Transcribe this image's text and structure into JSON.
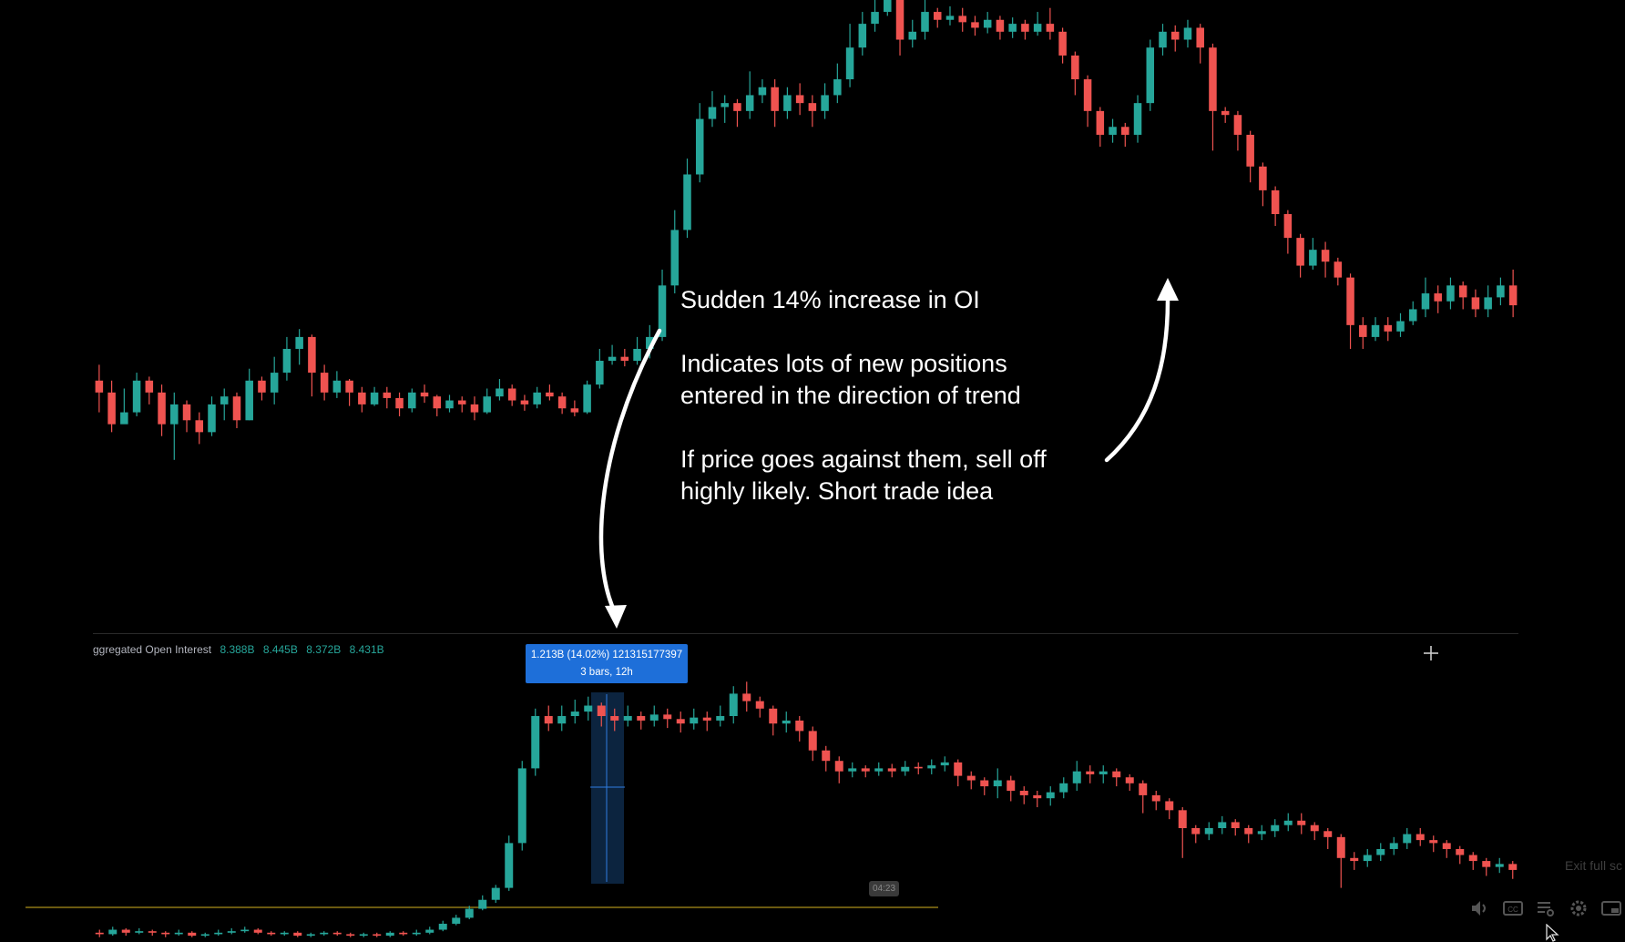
{
  "annotation": {
    "line1": "Sudden 14% increase in OI",
    "line2": "Indicates lots of new positions\nentered in the direction of trend",
    "line3": "If price goes against them, sell off\nhighly likely. Short trade idea"
  },
  "indicator": {
    "name": "ggregated Open Interest",
    "values": [
      "8.388B",
      "8.445B",
      "8.372B",
      "8.431B"
    ]
  },
  "measure_tooltip": {
    "line1": "1.213B (14.02%) 121315177397",
    "line2": "3 bars, 12h"
  },
  "video": {
    "timestamp": "04:23",
    "exit_label": "Exit full sc"
  },
  "colors": {
    "up": "#26a69a",
    "down": "#ef5350",
    "background": "#000000",
    "tooltip": "#1e6fd9",
    "annotation_text": "#ffffff",
    "baseline": "#6b5a10"
  },
  "icons": [
    "crosshair-icon",
    "volume-icon",
    "captions-icon",
    "playlist-icon",
    "settings-icon",
    "miniplayer-icon",
    "cursor-icon",
    "arrow-down-icon",
    "arrow-up-icon"
  ],
  "chart_data": [
    {
      "type": "candlestick",
      "pane": "price",
      "x": "bar index",
      "ohlc": [
        [
          520,
          505,
          540,
          480
        ],
        [
          505,
          465,
          520,
          455
        ],
        [
          465,
          480,
          510,
          470
        ],
        [
          480,
          520,
          530,
          475
        ],
        [
          520,
          505,
          525,
          490
        ],
        [
          505,
          465,
          515,
          450
        ],
        [
          465,
          490,
          505,
          420
        ],
        [
          490,
          470,
          495,
          455
        ],
        [
          470,
          455,
          480,
          440
        ],
        [
          455,
          490,
          500,
          450
        ],
        [
          490,
          500,
          510,
          470
        ],
        [
          500,
          470,
          505,
          460
        ],
        [
          470,
          520,
          535,
          470
        ],
        [
          520,
          505,
          525,
          495
        ],
        [
          505,
          530,
          550,
          490
        ],
        [
          530,
          560,
          575,
          520
        ],
        [
          560,
          575,
          585,
          540
        ],
        [
          575,
          530,
          578,
          500
        ],
        [
          530,
          505,
          540,
          495
        ],
        [
          505,
          520,
          532,
          498
        ],
        [
          520,
          505,
          522,
          488
        ],
        [
          505,
          490,
          512,
          480
        ],
        [
          490,
          505,
          512,
          488
        ],
        [
          505,
          498,
          512,
          485
        ],
        [
          498,
          485,
          505,
          475
        ],
        [
          485,
          505,
          510,
          480
        ],
        [
          505,
          500,
          515,
          492
        ],
        [
          500,
          485,
          502,
          475
        ],
        [
          485,
          495,
          502,
          480
        ],
        [
          495,
          490,
          500,
          480
        ],
        [
          490,
          480,
          500,
          470
        ],
        [
          480,
          500,
          510,
          478
        ],
        [
          500,
          510,
          522,
          495
        ],
        [
          510,
          495,
          515,
          488
        ],
        [
          495,
          490,
          502,
          482
        ],
        [
          490,
          505,
          512,
          485
        ],
        [
          505,
          500,
          515,
          495
        ],
        [
          500,
          485,
          505,
          478
        ],
        [
          485,
          480,
          495,
          475
        ],
        [
          480,
          515,
          520,
          478
        ],
        [
          515,
          545,
          560,
          510
        ],
        [
          545,
          550,
          565,
          540
        ],
        [
          550,
          545,
          560,
          538
        ],
        [
          545,
          560,
          575,
          540
        ],
        [
          560,
          575,
          590,
          548
        ],
        [
          575,
          640,
          660,
          570
        ],
        [
          640,
          710,
          735,
          630
        ],
        [
          710,
          780,
          800,
          700
        ],
        [
          780,
          850,
          870,
          770
        ],
        [
          850,
          865,
          885,
          840
        ],
        [
          865,
          870,
          880,
          845
        ],
        [
          870,
          860,
          875,
          840
        ],
        [
          860,
          880,
          910,
          850
        ],
        [
          880,
          890,
          900,
          870
        ],
        [
          890,
          860,
          900,
          840
        ],
        [
          860,
          880,
          890,
          850
        ],
        [
          880,
          870,
          895,
          855
        ],
        [
          870,
          860,
          880,
          840
        ],
        [
          860,
          880,
          895,
          850
        ],
        [
          880,
          900,
          920,
          870
        ],
        [
          900,
          940,
          970,
          890
        ],
        [
          940,
          970,
          985,
          930
        ],
        [
          970,
          985,
          1000,
          960
        ],
        [
          985,
          1000,
          1010,
          980
        ],
        [
          1000,
          950,
          1012,
          930
        ],
        [
          950,
          960,
          975,
          940
        ],
        [
          960,
          985,
          1000,
          950
        ],
        [
          985,
          975,
          990,
          965
        ],
        [
          975,
          980,
          992,
          968
        ],
        [
          980,
          972,
          990,
          960
        ],
        [
          972,
          965,
          980,
          955
        ],
        [
          965,
          975,
          985,
          958
        ],
        [
          975,
          960,
          980,
          950
        ],
        [
          960,
          970,
          978,
          952
        ],
        [
          970,
          960,
          975,
          950
        ],
        [
          960,
          970,
          985,
          955
        ],
        [
          970,
          960,
          990,
          950
        ],
        [
          960,
          930,
          965,
          920
        ],
        [
          930,
          900,
          935,
          880
        ],
        [
          900,
          860,
          905,
          840
        ],
        [
          860,
          830,
          865,
          815
        ],
        [
          830,
          840,
          850,
          820
        ],
        [
          840,
          830,
          845,
          815
        ],
        [
          830,
          870,
          880,
          820
        ],
        [
          870,
          940,
          950,
          860
        ],
        [
          940,
          960,
          970,
          930
        ],
        [
          960,
          950,
          968,
          935
        ],
        [
          950,
          965,
          975,
          940
        ],
        [
          965,
          940,
          970,
          920
        ],
        [
          940,
          860,
          945,
          810
        ],
        [
          860,
          855,
          865,
          845
        ],
        [
          855,
          830,
          860,
          810
        ],
        [
          830,
          790,
          835,
          770
        ],
        [
          790,
          760,
          795,
          740
        ],
        [
          760,
          730,
          765,
          715
        ],
        [
          730,
          700,
          735,
          680
        ],
        [
          700,
          665,
          705,
          650
        ],
        [
          665,
          685,
          700,
          660
        ],
        [
          685,
          670,
          695,
          650
        ],
        [
          670,
          650,
          675,
          640
        ],
        [
          650,
          590,
          655,
          560
        ],
        [
          590,
          575,
          600,
          560
        ],
        [
          575,
          590,
          600,
          570
        ],
        [
          590,
          582,
          600,
          570
        ],
        [
          582,
          595,
          605,
          575
        ],
        [
          595,
          610,
          620,
          590
        ],
        [
          610,
          630,
          650,
          600
        ],
        [
          630,
          620,
          640,
          605
        ],
        [
          620,
          640,
          650,
          610
        ],
        [
          640,
          625,
          645,
          610
        ],
        [
          625,
          610,
          635,
          600
        ],
        [
          610,
          625,
          640,
          600
        ],
        [
          625,
          640,
          650,
          615
        ],
        [
          640,
          615,
          660,
          600
        ]
      ]
    },
    {
      "type": "candlestick",
      "pane": "open_interest",
      "series": "Aggregated Open Interest",
      "x": "bar index",
      "ohlc": [
        [
          8.1,
          8.09,
          8.12,
          8.07
        ],
        [
          8.09,
          8.12,
          8.14,
          8.08
        ],
        [
          8.12,
          8.1,
          8.13,
          8.08
        ],
        [
          8.1,
          8.11,
          8.13,
          8.09
        ],
        [
          8.11,
          8.1,
          8.12,
          8.08
        ],
        [
          8.1,
          8.09,
          8.11,
          8.07
        ],
        [
          8.09,
          8.1,
          8.12,
          8.08
        ],
        [
          8.1,
          8.08,
          8.11,
          8.07
        ],
        [
          8.08,
          8.09,
          8.1,
          8.07
        ],
        [
          8.09,
          8.1,
          8.12,
          8.08
        ],
        [
          8.1,
          8.11,
          8.13,
          8.09
        ],
        [
          8.11,
          8.12,
          8.14,
          8.1
        ],
        [
          8.12,
          8.1,
          8.13,
          8.09
        ],
        [
          8.1,
          8.09,
          8.11,
          8.08
        ],
        [
          8.09,
          8.1,
          8.11,
          8.08
        ],
        [
          8.1,
          8.08,
          8.11,
          8.07
        ],
        [
          8.08,
          8.09,
          8.1,
          8.07
        ],
        [
          8.09,
          8.1,
          8.11,
          8.08
        ],
        [
          8.1,
          8.09,
          8.11,
          8.08
        ],
        [
          8.09,
          8.08,
          8.1,
          8.07
        ],
        [
          8.08,
          8.09,
          8.1,
          8.07
        ],
        [
          8.09,
          8.08,
          8.1,
          8.07
        ],
        [
          8.08,
          8.1,
          8.11,
          8.07
        ],
        [
          8.1,
          8.09,
          8.11,
          8.08
        ],
        [
          8.09,
          8.1,
          8.12,
          8.08
        ],
        [
          8.1,
          8.12,
          8.14,
          8.09
        ],
        [
          8.12,
          8.16,
          8.18,
          8.11
        ],
        [
          8.16,
          8.2,
          8.22,
          8.15
        ],
        [
          8.2,
          8.26,
          8.28,
          8.19
        ],
        [
          8.26,
          8.32,
          8.35,
          8.25
        ],
        [
          8.32,
          8.4,
          8.42,
          8.3
        ],
        [
          8.4,
          8.7,
          8.75,
          8.38
        ],
        [
          8.7,
          9.2,
          9.25,
          8.65
        ],
        [
          9.2,
          9.55,
          9.6,
          9.15
        ],
        [
          9.55,
          9.5,
          9.62,
          9.45
        ],
        [
          9.5,
          9.55,
          9.62,
          9.45
        ],
        [
          9.55,
          9.58,
          9.66,
          9.5
        ],
        [
          9.58,
          9.62,
          9.68,
          9.52
        ],
        [
          9.62,
          9.55,
          9.64,
          9.48
        ],
        [
          9.55,
          9.52,
          9.6,
          9.45
        ],
        [
          9.52,
          9.55,
          9.62,
          9.48
        ],
        [
          9.55,
          9.52,
          9.58,
          9.46
        ],
        [
          9.52,
          9.56,
          9.62,
          9.48
        ],
        [
          9.56,
          9.53,
          9.6,
          9.47
        ],
        [
          9.53,
          9.5,
          9.58,
          9.44
        ],
        [
          9.5,
          9.54,
          9.6,
          9.46
        ],
        [
          9.54,
          9.52,
          9.58,
          9.45
        ],
        [
          9.52,
          9.55,
          9.62,
          9.48
        ],
        [
          9.55,
          9.7,
          9.75,
          9.5
        ],
        [
          9.7,
          9.65,
          9.78,
          9.58
        ],
        [
          9.65,
          9.6,
          9.68,
          9.54
        ],
        [
          9.6,
          9.5,
          9.62,
          9.42
        ],
        [
          9.5,
          9.52,
          9.58,
          9.44
        ],
        [
          9.52,
          9.45,
          9.55,
          9.38
        ],
        [
          9.45,
          9.32,
          9.48,
          9.25
        ],
        [
          9.32,
          9.25,
          9.35,
          9.18
        ],
        [
          9.25,
          9.18,
          9.28,
          9.1
        ],
        [
          9.18,
          9.2,
          9.24,
          9.14
        ],
        [
          9.2,
          9.18,
          9.22,
          9.14
        ],
        [
          9.18,
          9.2,
          9.24,
          9.15
        ],
        [
          9.2,
          9.18,
          9.23,
          9.14
        ],
        [
          9.18,
          9.21,
          9.25,
          9.15
        ],
        [
          9.21,
          9.2,
          9.24,
          9.16
        ],
        [
          9.2,
          9.22,
          9.26,
          9.16
        ],
        [
          9.22,
          9.24,
          9.28,
          9.18
        ],
        [
          9.24,
          9.15,
          9.26,
          9.08
        ],
        [
          9.15,
          9.12,
          9.18,
          9.06
        ],
        [
          9.12,
          9.08,
          9.14,
          9.02
        ],
        [
          9.08,
          9.12,
          9.2,
          9.0
        ],
        [
          9.12,
          9.05,
          9.15,
          8.98
        ],
        [
          9.05,
          9.02,
          9.08,
          8.96
        ],
        [
          9.02,
          9.0,
          9.05,
          8.94
        ],
        [
          9.0,
          9.04,
          9.08,
          8.95
        ],
        [
          9.04,
          9.1,
          9.14,
          9.0
        ],
        [
          9.1,
          9.18,
          9.25,
          9.05
        ],
        [
          9.18,
          9.16,
          9.22,
          9.1
        ],
        [
          9.16,
          9.18,
          9.22,
          9.1
        ],
        [
          9.18,
          9.14,
          9.2,
          9.08
        ],
        [
          9.14,
          9.1,
          9.16,
          9.05
        ],
        [
          9.1,
          9.02,
          9.12,
          8.9
        ],
        [
          9.02,
          8.98,
          9.05,
          8.92
        ],
        [
          8.98,
          8.92,
          9.0,
          8.86
        ],
        [
          8.92,
          8.8,
          8.94,
          8.6
        ],
        [
          8.8,
          8.76,
          8.82,
          8.7
        ],
        [
          8.76,
          8.8,
          8.84,
          8.72
        ],
        [
          8.8,
          8.84,
          8.88,
          8.76
        ],
        [
          8.84,
          8.8,
          8.86,
          8.75
        ],
        [
          8.8,
          8.76,
          8.82,
          8.7
        ],
        [
          8.76,
          8.78,
          8.82,
          8.72
        ],
        [
          8.78,
          8.82,
          8.86,
          8.74
        ],
        [
          8.82,
          8.85,
          8.9,
          8.78
        ],
        [
          8.85,
          8.82,
          8.9,
          8.76
        ],
        [
          8.82,
          8.78,
          8.84,
          8.72
        ],
        [
          8.78,
          8.74,
          8.8,
          8.66
        ],
        [
          8.74,
          8.6,
          8.76,
          8.4
        ],
        [
          8.6,
          8.58,
          8.64,
          8.52
        ],
        [
          8.58,
          8.62,
          8.66,
          8.54
        ],
        [
          8.62,
          8.66,
          8.7,
          8.58
        ],
        [
          8.66,
          8.7,
          8.74,
          8.62
        ],
        [
          8.7,
          8.76,
          8.8,
          8.66
        ],
        [
          8.76,
          8.72,
          8.8,
          8.68
        ],
        [
          8.72,
          8.7,
          8.75,
          8.64
        ],
        [
          8.7,
          8.66,
          8.72,
          8.6
        ],
        [
          8.66,
          8.62,
          8.68,
          8.56
        ],
        [
          8.62,
          8.58,
          8.64,
          8.52
        ],
        [
          8.58,
          8.54,
          8.6,
          8.48
        ],
        [
          8.54,
          8.56,
          8.6,
          8.5
        ],
        [
          8.56,
          8.52,
          8.58,
          8.46
        ]
      ]
    }
  ]
}
